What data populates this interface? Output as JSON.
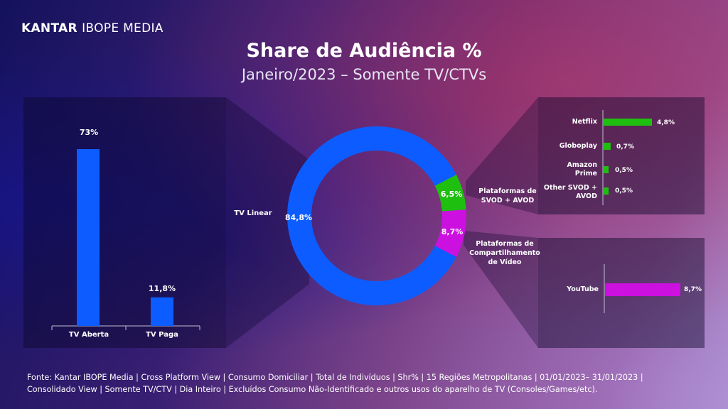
{
  "logo": {
    "strong": "KANTAR",
    "light": "IBOPE MEDIA"
  },
  "title": "Share de Audiência %",
  "subtitle": "Janeiro/2023 – Somente TV/CTVs",
  "colors": {
    "blue": "#0d5cff",
    "green": "#1fbf0f",
    "magenta": "#cc10e0"
  },
  "chart_data": [
    {
      "type": "bar",
      "categories": [
        "TV Aberta",
        "TV Paga"
      ],
      "values": [
        73,
        11.8
      ],
      "value_labels": [
        "73%",
        "11,8%"
      ],
      "ylim": [
        0,
        80
      ],
      "color": "#0d5cff"
    },
    {
      "type": "pie",
      "style": "donut",
      "slices": [
        {
          "label": "TV Linear",
          "value": 84.8,
          "value_label": "84,8%",
          "color": "#0d5cff"
        },
        {
          "label": "Plataformas de SVOD + AVOD",
          "value": 6.5,
          "value_label": "6,5%",
          "color": "#1fbf0f"
        },
        {
          "label": "Plataformas de Compartilhamento de Vídeo",
          "value": 8.7,
          "value_label": "8,7%",
          "color": "#cc10e0"
        }
      ]
    },
    {
      "type": "bar",
      "orientation": "horizontal",
      "categories": [
        "Netflix",
        "Globoplay",
        "Amazon Prime",
        "Other SVOD + AVOD"
      ],
      "values": [
        4.8,
        0.7,
        0.5,
        0.5
      ],
      "value_labels": [
        "4,8%",
        "0,7%",
        "0,5%",
        "0,5%"
      ],
      "color": "#1fbf0f"
    },
    {
      "type": "bar",
      "orientation": "horizontal",
      "categories": [
        "YouTube"
      ],
      "values": [
        8.7
      ],
      "value_labels": [
        "8,7%"
      ],
      "color": "#cc10e0"
    }
  ],
  "footer": {
    "line1": "Fonte: Kantar IBOPE Media | Cross Platform View | Consumo Domiciliar | Total de Indivíduos | Shr% | 15 Regiões Metropolitanas | 01/01/2023– 31/01/2023 |",
    "line2": "Consolidado View | Somente TV/CTV | Dia Inteiro | Excluídos Consumo Não-Identificado e outros usos do aparelho de TV (Consoles/Games/etc)."
  }
}
